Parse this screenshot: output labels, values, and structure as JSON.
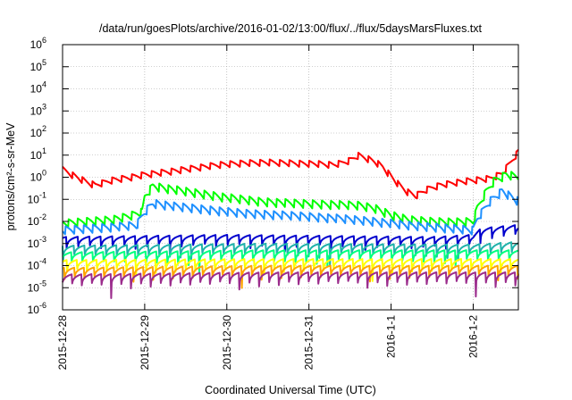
{
  "chart_data": {
    "type": "line",
    "title": "/data/run/goesPlots/archive/2016-01-02/13:00/flux/../flux/5daysMarsFluxes.txt",
    "xlabel": "Coordinated Universal Time (UTC)",
    "ylabel": "protons/cm²-s-sr-MeV",
    "yscale": "log",
    "ylim_exp": [
      -6,
      6
    ],
    "ytick_exps": [
      -6,
      -5,
      -4,
      -3,
      -2,
      -1,
      0,
      1,
      2,
      3,
      4,
      5,
      6
    ],
    "x_dates": [
      "2015-12-28",
      "2015-12-29",
      "2015-12-30",
      "2015-12-31",
      "2016-1-1",
      "2016-1-2"
    ],
    "x_range_days": [
      0,
      5.55
    ],
    "grid": true,
    "series": [
      {
        "color": "#ff0000",
        "style": "smooth",
        "points": [
          [
            0.0,
            3.0
          ],
          [
            0.15,
            1.5
          ],
          [
            0.3,
            0.8
          ],
          [
            0.4,
            0.6
          ],
          [
            0.6,
            1.0
          ],
          [
            0.8,
            1.3
          ],
          [
            1.0,
            1.8
          ],
          [
            1.3,
            2.5
          ],
          [
            1.6,
            3.5
          ],
          [
            1.9,
            5.0
          ],
          [
            2.2,
            6.0
          ],
          [
            2.5,
            6.5
          ],
          [
            2.8,
            6.0
          ],
          [
            3.1,
            5.5
          ],
          [
            3.3,
            5.0
          ],
          [
            3.4,
            6.0
          ],
          [
            3.5,
            8.0
          ],
          [
            3.6,
            13.0
          ],
          [
            3.7,
            10.0
          ],
          [
            3.8,
            7.0
          ],
          [
            3.9,
            4.0
          ],
          [
            4.0,
            1.5
          ],
          [
            4.1,
            0.6
          ],
          [
            4.2,
            0.3
          ],
          [
            4.3,
            0.2
          ],
          [
            4.45,
            0.4
          ],
          [
            4.6,
            0.6
          ],
          [
            4.8,
            0.8
          ],
          [
            5.0,
            1.0
          ],
          [
            5.2,
            1.2
          ],
          [
            5.35,
            2.0
          ],
          [
            5.45,
            6.0
          ],
          [
            5.55,
            20.0
          ]
        ],
        "osc": {
          "period": 0.12,
          "depth": 0.5
        }
      },
      {
        "color": "#00ff00",
        "style": "smooth",
        "points": [
          [
            0.0,
            0.012
          ],
          [
            0.3,
            0.015
          ],
          [
            0.6,
            0.018
          ],
          [
            0.8,
            0.025
          ],
          [
            0.97,
            0.04
          ],
          [
            1.0,
            0.2
          ],
          [
            1.1,
            0.6
          ],
          [
            1.3,
            0.45
          ],
          [
            1.6,
            0.3
          ],
          [
            2.0,
            0.18
          ],
          [
            2.4,
            0.12
          ],
          [
            2.8,
            0.1
          ],
          [
            3.2,
            0.09
          ],
          [
            3.6,
            0.08
          ],
          [
            3.8,
            0.06
          ],
          [
            4.0,
            0.03
          ],
          [
            4.2,
            0.018
          ],
          [
            4.5,
            0.015
          ],
          [
            4.8,
            0.014
          ],
          [
            5.0,
            0.015
          ],
          [
            5.05,
            0.06
          ],
          [
            5.15,
            0.3
          ],
          [
            5.25,
            1.0
          ],
          [
            5.4,
            2.0
          ],
          [
            5.55,
            1.5
          ]
        ],
        "osc": {
          "period": 0.11,
          "depth": 0.6
        }
      },
      {
        "color": "#1e90ff",
        "style": "smooth",
        "points": [
          [
            0.0,
            0.006
          ],
          [
            0.5,
            0.008
          ],
          [
            0.9,
            0.01
          ],
          [
            1.0,
            0.04
          ],
          [
            1.1,
            0.1
          ],
          [
            1.4,
            0.07
          ],
          [
            1.8,
            0.05
          ],
          [
            2.2,
            0.035
          ],
          [
            2.6,
            0.03
          ],
          [
            3.0,
            0.025
          ],
          [
            3.4,
            0.02
          ],
          [
            3.8,
            0.015
          ],
          [
            4.2,
            0.01
          ],
          [
            4.6,
            0.008
          ],
          [
            5.0,
            0.006
          ],
          [
            5.05,
            0.02
          ],
          [
            5.2,
            0.12
          ],
          [
            5.35,
            0.35
          ],
          [
            5.55,
            0.12
          ]
        ],
        "osc": {
          "period": 0.11,
          "depth": 0.6
        }
      },
      {
        "color": "#0000cd",
        "style": "spiky",
        "points": [
          [
            0.0,
            0.002
          ],
          [
            2.0,
            0.0025
          ],
          [
            4.5,
            0.002
          ],
          [
            5.0,
            0.0025
          ],
          [
            5.1,
            0.005
          ],
          [
            5.55,
            0.007
          ]
        ],
        "spike": {
          "period": 0.14,
          "depth": 0.9
        }
      },
      {
        "color": "#20b2aa",
        "style": "spiky",
        "points": [
          [
            0.0,
            0.0008
          ],
          [
            2.5,
            0.001
          ],
          [
            5.0,
            0.0009
          ],
          [
            5.55,
            0.0012
          ]
        ],
        "spike": {
          "period": 0.13,
          "depth": 0.9
        }
      },
      {
        "color": "#00ff7f",
        "style": "spiky",
        "points": [
          [
            0.0,
            0.0004
          ],
          [
            2.5,
            0.0005
          ],
          [
            5.55,
            0.0005
          ]
        ],
        "spike": {
          "period": 0.13,
          "depth": 0.9
        }
      },
      {
        "color": "#ffff00",
        "style": "spiky",
        "points": [
          [
            0.0,
            0.00018
          ],
          [
            2.5,
            0.0002
          ],
          [
            5.55,
            0.0002
          ]
        ],
        "spike": {
          "period": 0.12,
          "depth": 0.9
        }
      },
      {
        "color": "#ffa500",
        "style": "spiky",
        "points": [
          [
            0.0,
            8e-05
          ],
          [
            2.5,
            0.0001
          ],
          [
            5.55,
            0.0001
          ]
        ],
        "spike": {
          "period": 0.12,
          "depth": 0.9
        }
      },
      {
        "color": "#9b2c8c",
        "style": "spiky",
        "points": [
          [
            0.0,
            4e-05
          ],
          [
            2.5,
            5e-05
          ],
          [
            5.55,
            5e-05
          ]
        ],
        "spike": {
          "period": 0.12,
          "depth": 0.92
        }
      }
    ]
  }
}
